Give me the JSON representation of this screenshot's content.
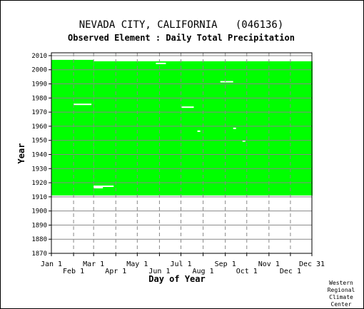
{
  "chart_data": {
    "type": "heatmap",
    "title": "NEVADA CITY, CALIFORNIA   (046136)",
    "subtitle": "Observed Element : Daily Total Precipitation",
    "xlabel": "Day of Year",
    "ylabel": "Year",
    "credit": "Western Regional Climate Center",
    "credit_lines": [
      "Western",
      "Regional",
      "Climate",
      "Center"
    ],
    "x_tick_labels_upper": [
      "Jan 1",
      "Mar 1",
      "May 1",
      "Jul 1",
      "Sep 1",
      "Nov 1",
      "Dec 31"
    ],
    "x_tick_labels_lower": [
      "Feb 1",
      "Apr 1",
      "Jun 1",
      "Aug 1",
      "Oct 1",
      "Dec 1"
    ],
    "x_tick_days_upper": [
      1,
      60,
      121,
      182,
      244,
      305,
      365
    ],
    "x_tick_days_lower": [
      32,
      91,
      152,
      213,
      274,
      335
    ],
    "y_ticks": [
      1870,
      1880,
      1890,
      1900,
      1910,
      1920,
      1930,
      1940,
      1950,
      1960,
      1970,
      1980,
      1990,
      2000,
      2010
    ],
    "xlim": [
      1,
      365
    ],
    "ylim": [
      1870,
      2012
    ],
    "grid": true,
    "colors": {
      "observed": "#00ff00",
      "missing": "#ffffff",
      "grid": "#888888"
    },
    "record_start": 1911,
    "observed_periods": [
      {
        "start_day": 1,
        "end_day": 59,
        "start_year": 1911,
        "end_year": 2006
      },
      {
        "start_day": 60,
        "end_day": 365,
        "start_year": 1911,
        "end_year": 2005
      }
    ],
    "missing_segments": [
      {
        "start_day": 32,
        "end_day": 56,
        "year": 1975
      },
      {
        "start_day": 60,
        "end_day": 87,
        "year": 1917
      },
      {
        "start_day": 60,
        "end_day": 72,
        "year": 1916
      },
      {
        "start_day": 147,
        "end_day": 160,
        "year": 2004
      },
      {
        "start_day": 183,
        "end_day": 199,
        "year": 1973
      },
      {
        "start_day": 205,
        "end_day": 208,
        "year": 1956
      },
      {
        "start_day": 237,
        "end_day": 254,
        "year": 1991
      },
      {
        "start_day": 255,
        "end_day": 258,
        "year": 1958
      },
      {
        "start_day": 268,
        "end_day": 271,
        "year": 1949
      }
    ]
  }
}
